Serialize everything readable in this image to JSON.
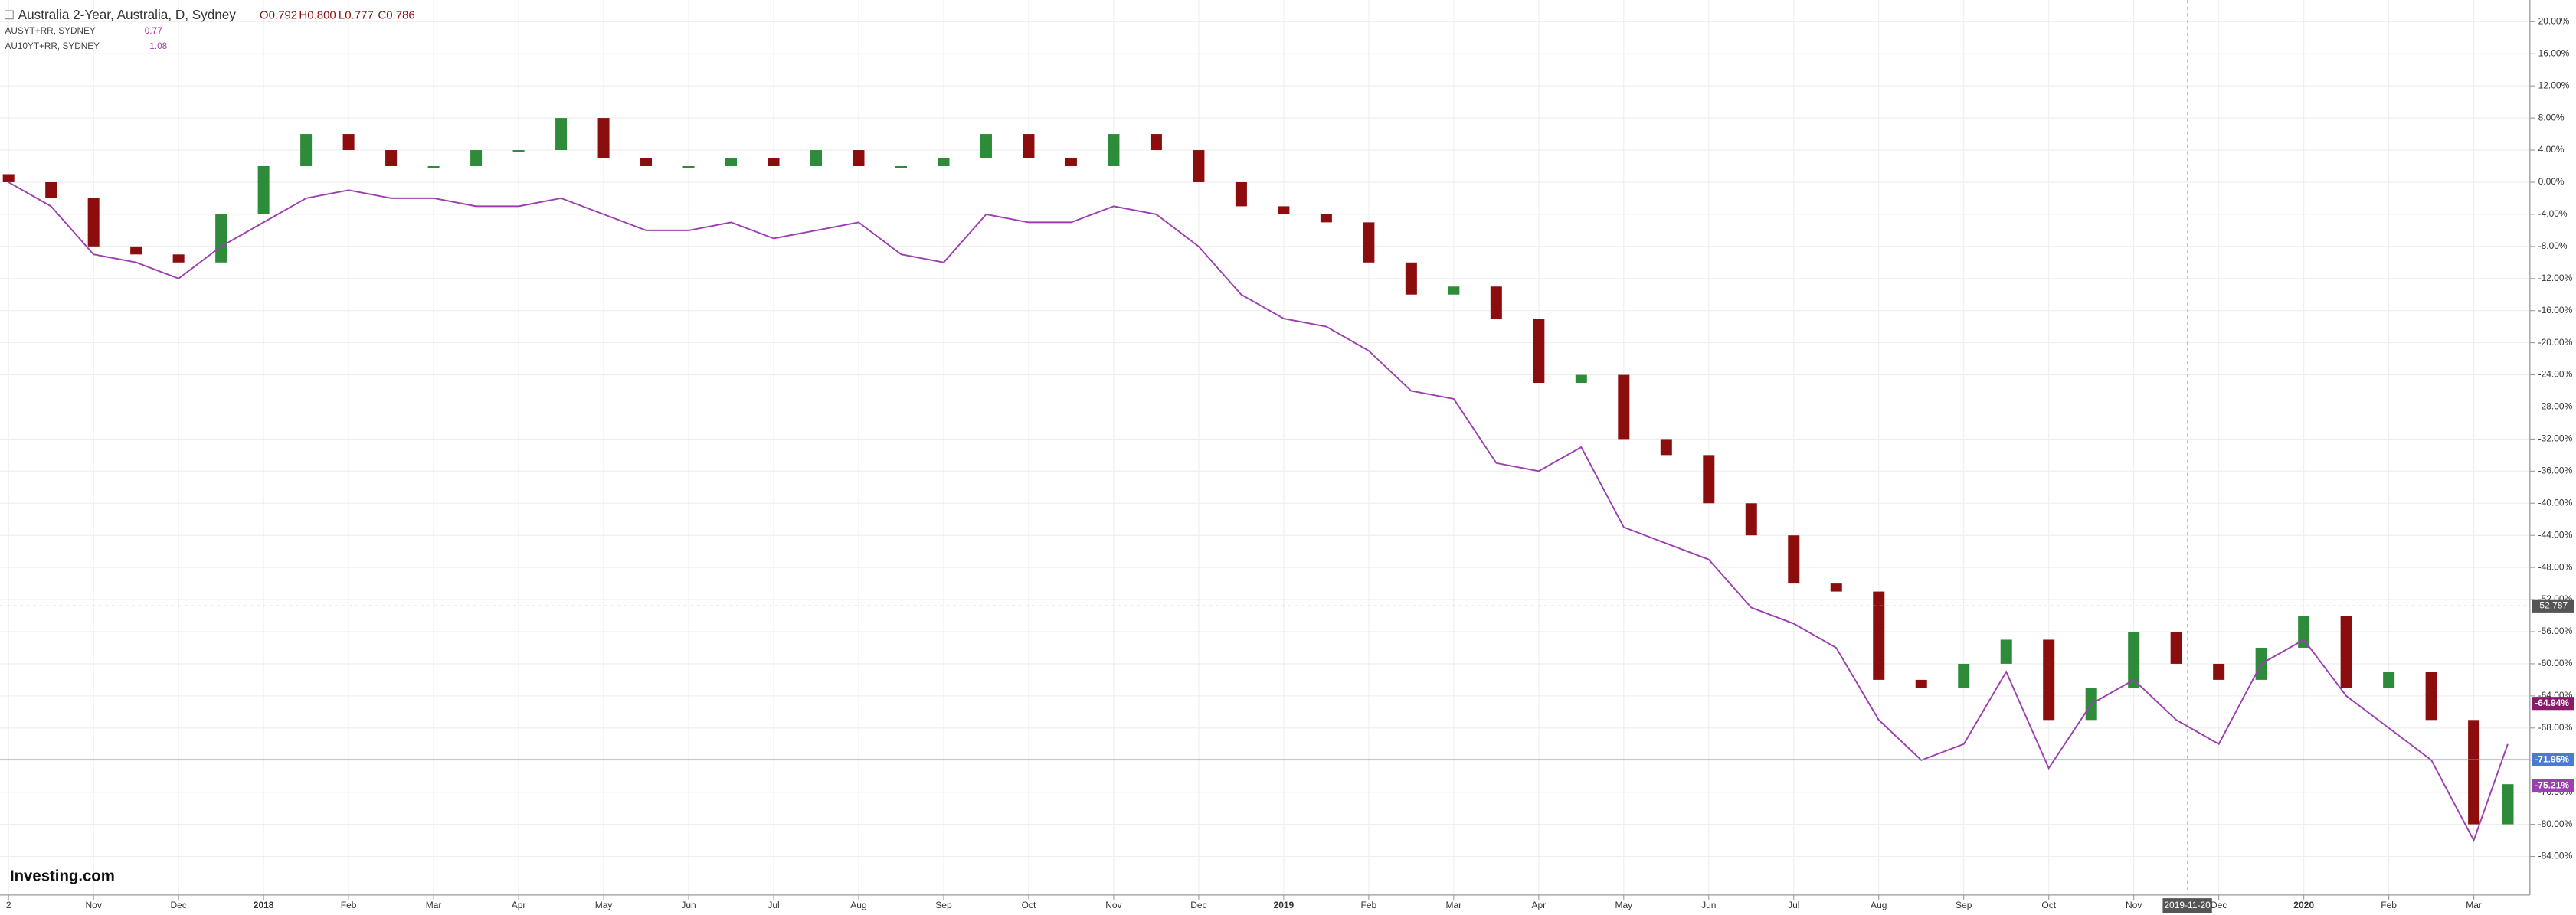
{
  "chart_data": {
    "type": "candlestick",
    "title": "Australia 2-Year, Australia, D, Sydney",
    "ohlc_text": [
      "O0.792",
      "H0.800",
      "L0.777",
      "C0.786"
    ],
    "legend": [
      {
        "name": "AUSYT+RR, SYDNEY",
        "value": "0.77",
        "color": "#b0289a"
      },
      {
        "name": "AU10YT+RR, SYDNEY",
        "value": "1.08",
        "color": "#9c3fb0"
      }
    ],
    "logo": "Investing.com",
    "x": [
      0,
      0.5,
      1,
      1.5,
      2,
      2.5,
      3,
      3.5,
      4,
      4.5,
      5,
      5.5,
      6,
      6.5,
      7,
      7.5,
      8,
      8.5,
      9,
      9.5,
      10,
      10.5,
      11,
      11.5,
      12,
      12.5,
      13,
      13.5,
      14,
      14.5,
      15,
      15.5,
      16,
      16.5,
      17,
      17.5,
      18,
      18.5,
      19,
      19.5,
      20,
      20.5,
      21,
      21.5,
      22,
      22.5,
      23,
      23.5,
      24,
      24.5,
      25,
      25.5,
      26,
      26.5,
      27,
      27.5,
      28,
      28.5,
      29,
      29.4
    ],
    "open": [
      1,
      0,
      -2,
      -8,
      -9,
      -10,
      -4,
      2,
      6,
      4,
      2,
      2,
      4,
      4,
      8,
      3,
      2,
      2,
      3,
      2,
      4,
      2,
      2,
      3,
      6,
      3,
      2,
      6,
      4,
      0,
      -3,
      -4,
      -5,
      -10,
      -14,
      -13,
      -17,
      -25,
      -24,
      -32,
      -34,
      -40,
      -44,
      -50,
      -51,
      -62,
      -63,
      -60,
      -57,
      -67,
      -63,
      -56,
      -60,
      -62,
      -58,
      -54,
      -63,
      -61,
      -67,
      -80
    ],
    "close": [
      0,
      -2,
      -8,
      -9,
      -10,
      -4,
      2,
      6,
      4,
      2,
      2,
      4,
      4,
      8,
      3,
      2,
      2,
      3,
      2,
      4,
      2,
      2,
      3,
      6,
      3,
      2,
      6,
      4,
      0,
      -3,
      -4,
      -5,
      -10,
      -14,
      -13,
      -17,
      -25,
      -24,
      -32,
      -34,
      -40,
      -44,
      -50,
      -51,
      -62,
      -63,
      -60,
      -57,
      -67,
      -63,
      -56,
      -60,
      -62,
      -58,
      -54,
      -63,
      -61,
      -67,
      -80,
      -75
    ],
    "up_color": "#2e8b3a",
    "down_color": "#8b0d0d",
    "series": [
      {
        "name": "AU10YT+RR, SYDNEY",
        "color": "#9c3fb0",
        "values": [
          0,
          -3,
          -9,
          -10,
          -12,
          -8,
          -5,
          -2,
          -1,
          -2,
          -2,
          -3,
          -3,
          -2,
          -4,
          -6,
          -6,
          -5,
          -7,
          -6,
          -5,
          -9,
          -10,
          -4,
          -5,
          -5,
          -3,
          -4,
          -8,
          -14,
          -17,
          -18,
          -21,
          -26,
          -27,
          -35,
          -36,
          -33,
          -43,
          -45,
          -47,
          -53,
          -55,
          -58,
          -67,
          -72,
          -70,
          -61,
          -73,
          -65,
          -62,
          -67,
          -70,
          -60,
          -57,
          -64,
          -68,
          -72,
          -82,
          -70
        ]
      }
    ],
    "xlim": [
      -0.1,
      29.66
    ],
    "ylim": [
      22.7,
      -88.8
    ],
    "xticks": [
      {
        "value": 0,
        "label": "2"
      },
      {
        "value": 1,
        "label": "Nov"
      },
      {
        "value": 2,
        "label": "Dec"
      },
      {
        "value": 3,
        "label": "2018"
      },
      {
        "value": 4,
        "label": "Feb"
      },
      {
        "value": 5,
        "label": "Mar"
      },
      {
        "value": 6,
        "label": "Apr"
      },
      {
        "value": 7,
        "label": "May"
      },
      {
        "value": 8,
        "label": "Jun"
      },
      {
        "value": 9,
        "label": "Jul"
      },
      {
        "value": 10,
        "label": "Aug"
      },
      {
        "value": 11,
        "label": "Sep"
      },
      {
        "value": 12,
        "label": "Oct"
      },
      {
        "value": 13,
        "label": "Nov"
      },
      {
        "value": 14,
        "label": "Dec"
      },
      {
        "value": 15,
        "label": "2019"
      },
      {
        "value": 16,
        "label": "Feb"
      },
      {
        "value": 17,
        "label": "Mar"
      },
      {
        "value": 18,
        "label": "Apr"
      },
      {
        "value": 19,
        "label": "May"
      },
      {
        "value": 20,
        "label": "Jun"
      },
      {
        "value": 21,
        "label": "Jul"
      },
      {
        "value": 22,
        "label": "Aug"
      },
      {
        "value": 23,
        "label": "Sep"
      },
      {
        "value": 24,
        "label": "Oct"
      },
      {
        "value": 25,
        "label": "Nov"
      },
      {
        "value": 26,
        "label": "Dec"
      },
      {
        "value": 27,
        "label": "2020"
      },
      {
        "value": 28,
        "label": "Feb"
      },
      {
        "value": 29,
        "label": "Mar"
      }
    ],
    "yticks": [
      {
        "value": 20,
        "label": "20.00%"
      },
      {
        "value": 16,
        "label": "16.00%"
      },
      {
        "value": 12,
        "label": "12.00%"
      },
      {
        "value": 8,
        "label": "8.00%"
      },
      {
        "value": 4,
        "label": "4.00%"
      },
      {
        "value": 0,
        "label": "0.00%"
      },
      {
        "value": -4,
        "label": "-4.00%"
      },
      {
        "value": -8,
        "label": "-8.00%"
      },
      {
        "value": -12,
        "label": "-12.00%"
      },
      {
        "value": -16,
        "label": "-16.00%"
      },
      {
        "value": -20,
        "label": "-20.00%"
      },
      {
        "value": -24,
        "label": "-24.00%"
      },
      {
        "value": -28,
        "label": "-28.00%"
      },
      {
        "value": -32,
        "label": "-32.00%"
      },
      {
        "value": -36,
        "label": "-36.00%"
      },
      {
        "value": -40,
        "label": "-40.00%"
      },
      {
        "value": -44,
        "label": "-44.00%"
      },
      {
        "value": -48,
        "label": "-48.00%"
      },
      {
        "value": -52,
        "label": "-52.00%"
      },
      {
        "value": -56,
        "label": "-56.00%"
      },
      {
        "value": -60,
        "label": "-60.00%"
      },
      {
        "value": -64,
        "label": "-64.00%"
      },
      {
        "value": -68,
        "label": "-68.00%"
      },
      {
        "value": -72,
        "label": "-72.00%"
      },
      {
        "value": -76,
        "label": "-76.00%"
      },
      {
        "value": -80,
        "label": "-80.00%"
      },
      {
        "value": -84,
        "label": "-84.00%"
      }
    ],
    "grid": true,
    "price_labels": [
      {
        "value": -64.94,
        "label": "-64.94%",
        "color": "#8b1a6b"
      },
      {
        "value": -71.95,
        "label": "-71.95%",
        "color": "#4a7bd0"
      },
      {
        "value": -75.21,
        "label": "-75.21%",
        "color": "#9c3fb0"
      }
    ],
    "horizontal_line": -71.95,
    "crosshair": {
      "x": 25.63,
      "x_label": "2019-11-20",
      "y": -52.787,
      "y_label": "-52.787"
    }
  }
}
